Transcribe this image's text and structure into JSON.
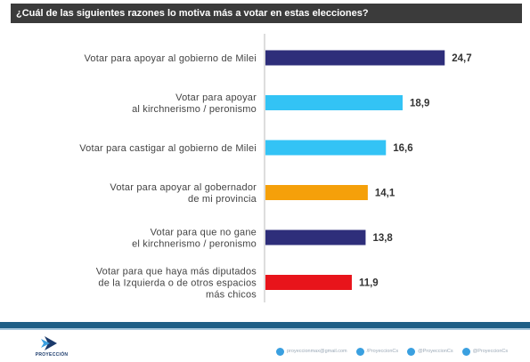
{
  "title": "¿Cuál de las siguientes razones lo motiva más a votar en estas elecciones?",
  "chart_data": {
    "type": "bar",
    "orientation": "horizontal",
    "categories": [
      [
        "Votar para apoyar al gobierno de Milei"
      ],
      [
        "Votar para apoyar",
        "al kirchnerismo / peronismo"
      ],
      [
        "Votar para castigar al gobierno de Milei"
      ],
      [
        "Votar para apoyar al gobernador",
        "de mi provincia"
      ],
      [
        "Votar para que no gane",
        "el kirchnerismo / peronismo"
      ],
      [
        "Votar para que haya más diputados",
        "de la Izquierda o de otros espacios",
        "más chicos"
      ]
    ],
    "values": [
      24.7,
      18.9,
      16.6,
      14.1,
      13.8,
      11.9
    ],
    "value_labels": [
      "24,7",
      "18,9",
      "16,6",
      "14,1",
      "13,8",
      "11,9"
    ],
    "colors": [
      "#2e2e7a",
      "#33c3f5",
      "#33c3f5",
      "#f5a00a",
      "#2e2e7a",
      "#e8141b"
    ],
    "xlim": [
      0,
      27
    ],
    "grid": false,
    "axis_line": true
  },
  "footer": {
    "logo_text": "PROYECCIÓN",
    "contacts": [
      {
        "icon": "mail-icon",
        "text": "proyeccionmax@gmail.com"
      },
      {
        "icon": "facebook-icon",
        "text": "/ProyeccionCs"
      },
      {
        "icon": "twitter-icon",
        "text": "@ProyeccionCs"
      },
      {
        "icon": "instagram-icon",
        "text": "@ProyeccionCs"
      }
    ]
  }
}
